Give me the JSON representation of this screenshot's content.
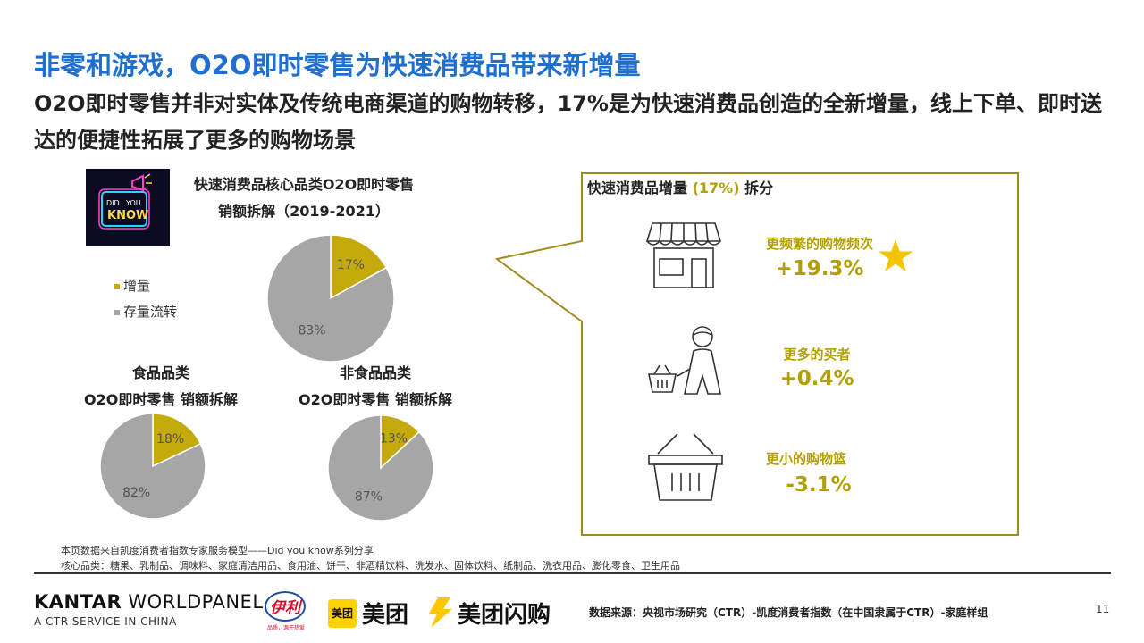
{
  "header": {
    "title": "非零和游戏，O2O即时零售为快速消费品带来新增量",
    "subtitle": "O2O即时零售并非对实体及传统电商渠道的购物转移，17%是为快速消费品创造的全新增量，线上下单、即时送达的便捷性拓展了更多的购物场景"
  },
  "badge": {
    "line1": "DID",
    "line2": "YOU",
    "line3": "KNOW"
  },
  "legend": {
    "incremental": "增量",
    "existing": "存量流转"
  },
  "colors": {
    "incremental": "#c4aa0a",
    "existing": "#a6a6a6",
    "accent": "#b3a000",
    "title_blue": "#1f6fd1",
    "frame": "#a08c1e"
  },
  "chart_data": [
    {
      "type": "pie",
      "title_line1": "快速消费品核心品类O2O即时零售",
      "title_line2": "销额拆解（2019-2021）",
      "labels": [
        "增量",
        "存量流转"
      ],
      "values": [
        17,
        83
      ],
      "value_labels": [
        "17%",
        "83%"
      ]
    },
    {
      "type": "pie",
      "title_line1": "食品品类",
      "title_line2": "O2O即时零售 销额拆解",
      "labels": [
        "增量",
        "存量流转"
      ],
      "values": [
        18,
        82
      ],
      "value_labels": [
        "18%",
        "82%"
      ]
    },
    {
      "type": "pie",
      "title_line1": "非食品品类",
      "title_line2": "O2O即时零售 销额拆解",
      "labels": [
        "增量",
        "存量流转"
      ],
      "values": [
        13,
        87
      ],
      "value_labels": [
        "13%",
        "87%"
      ]
    }
  ],
  "callout": {
    "title_pre": "快速消费品增量 ",
    "title_highlight": "(17%)",
    "title_post": " 拆分",
    "metrics": [
      {
        "label": "更频繁的购物频次",
        "value": "+19.3%",
        "icon": "store-icon",
        "starred": true
      },
      {
        "label": "更多的买者",
        "value": "+0.4%",
        "icon": "shopper-icon",
        "starred": false
      },
      {
        "label": "更小的购物篮",
        "value": "-3.1%",
        "icon": "basket-icon",
        "starred": false
      }
    ]
  },
  "footnotes": {
    "line1": "本页数据来自凯度消费者指数专家服务模型——Did you know系列分享",
    "line2": "核心品类：糖果、乳制品、调味料、家庭清洁用品、食用油、饼干、非酒精饮料、洗发水、固体饮料、纸制品、洗衣用品、膨化零食、卫生用品"
  },
  "footer": {
    "brand_bold": "KANTAR",
    "brand_rest": " WORLDPANEL",
    "brand_sub": "A CTR SERVICE IN CHINA",
    "yili": "伊利",
    "yili_sub": "品质，源于热爱",
    "meituan_box": "美团",
    "meituan_text": "美团",
    "shangou_text": "美团闪购",
    "source": "数据来源：央视市场研究（CTR）-凯度消费者指数（在中国隶属于CTR）-家庭样组",
    "page": "11"
  }
}
